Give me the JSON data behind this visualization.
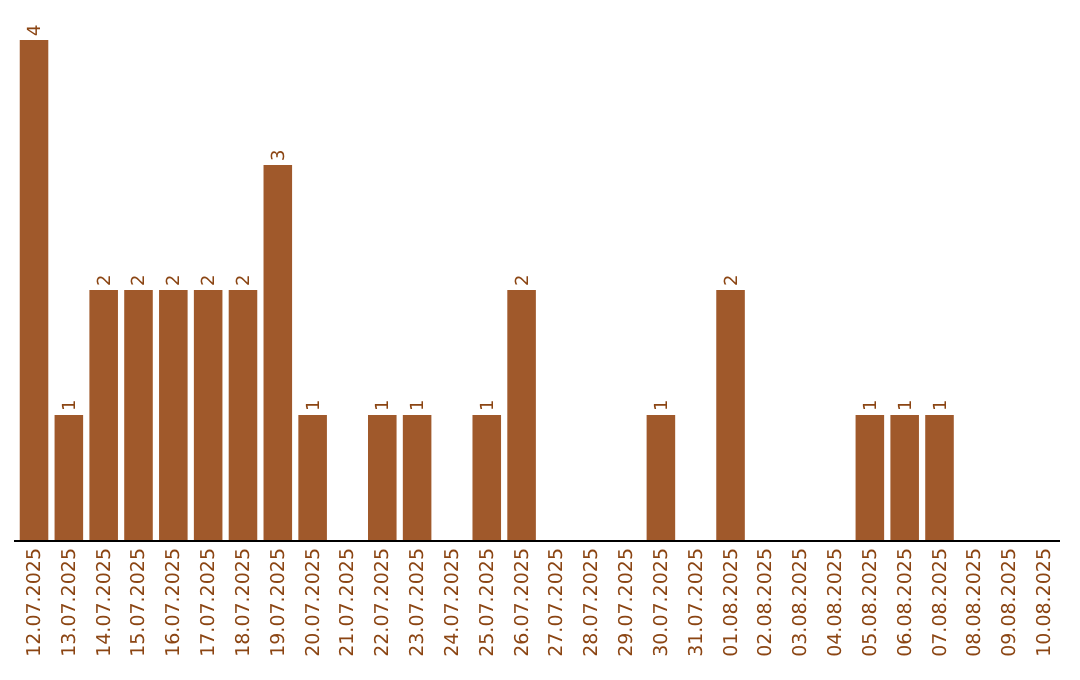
{
  "chart_data": {
    "type": "bar",
    "categories": [
      "12.07.2025",
      "13.07.2025",
      "14.07.2025",
      "15.07.2025",
      "16.07.2025",
      "17.07.2025",
      "18.07.2025",
      "19.07.2025",
      "20.07.2025",
      "21.07.2025",
      "22.07.2025",
      "23.07.2025",
      "24.07.2025",
      "25.07.2025",
      "26.07.2025",
      "27.07.2025",
      "28.07.2025",
      "29.07.2025",
      "30.07.2025",
      "31.07.2025",
      "01.08.2025",
      "02.08.2025",
      "03.08.2025",
      "04.08.2025",
      "05.08.2025",
      "06.08.2025",
      "07.08.2025",
      "08.08.2025",
      "09.08.2025",
      "10.08.2025"
    ],
    "values": [
      4,
      1,
      2,
      2,
      2,
      2,
      2,
      3,
      1,
      0,
      1,
      1,
      0,
      1,
      2,
      0,
      0,
      0,
      1,
      0,
      2,
      0,
      0,
      0,
      1,
      1,
      1,
      0,
      0,
      0
    ],
    "value_labels": [
      "4",
      "1",
      "2",
      "2",
      "2",
      "2",
      "2",
      "3",
      "1",
      null,
      "1",
      "1",
      null,
      "1",
      "2",
      null,
      null,
      null,
      "1",
      null,
      "2",
      null,
      null,
      null,
      "1",
      "1",
      "1",
      null,
      null,
      null
    ],
    "color": "#a0592b"
  }
}
